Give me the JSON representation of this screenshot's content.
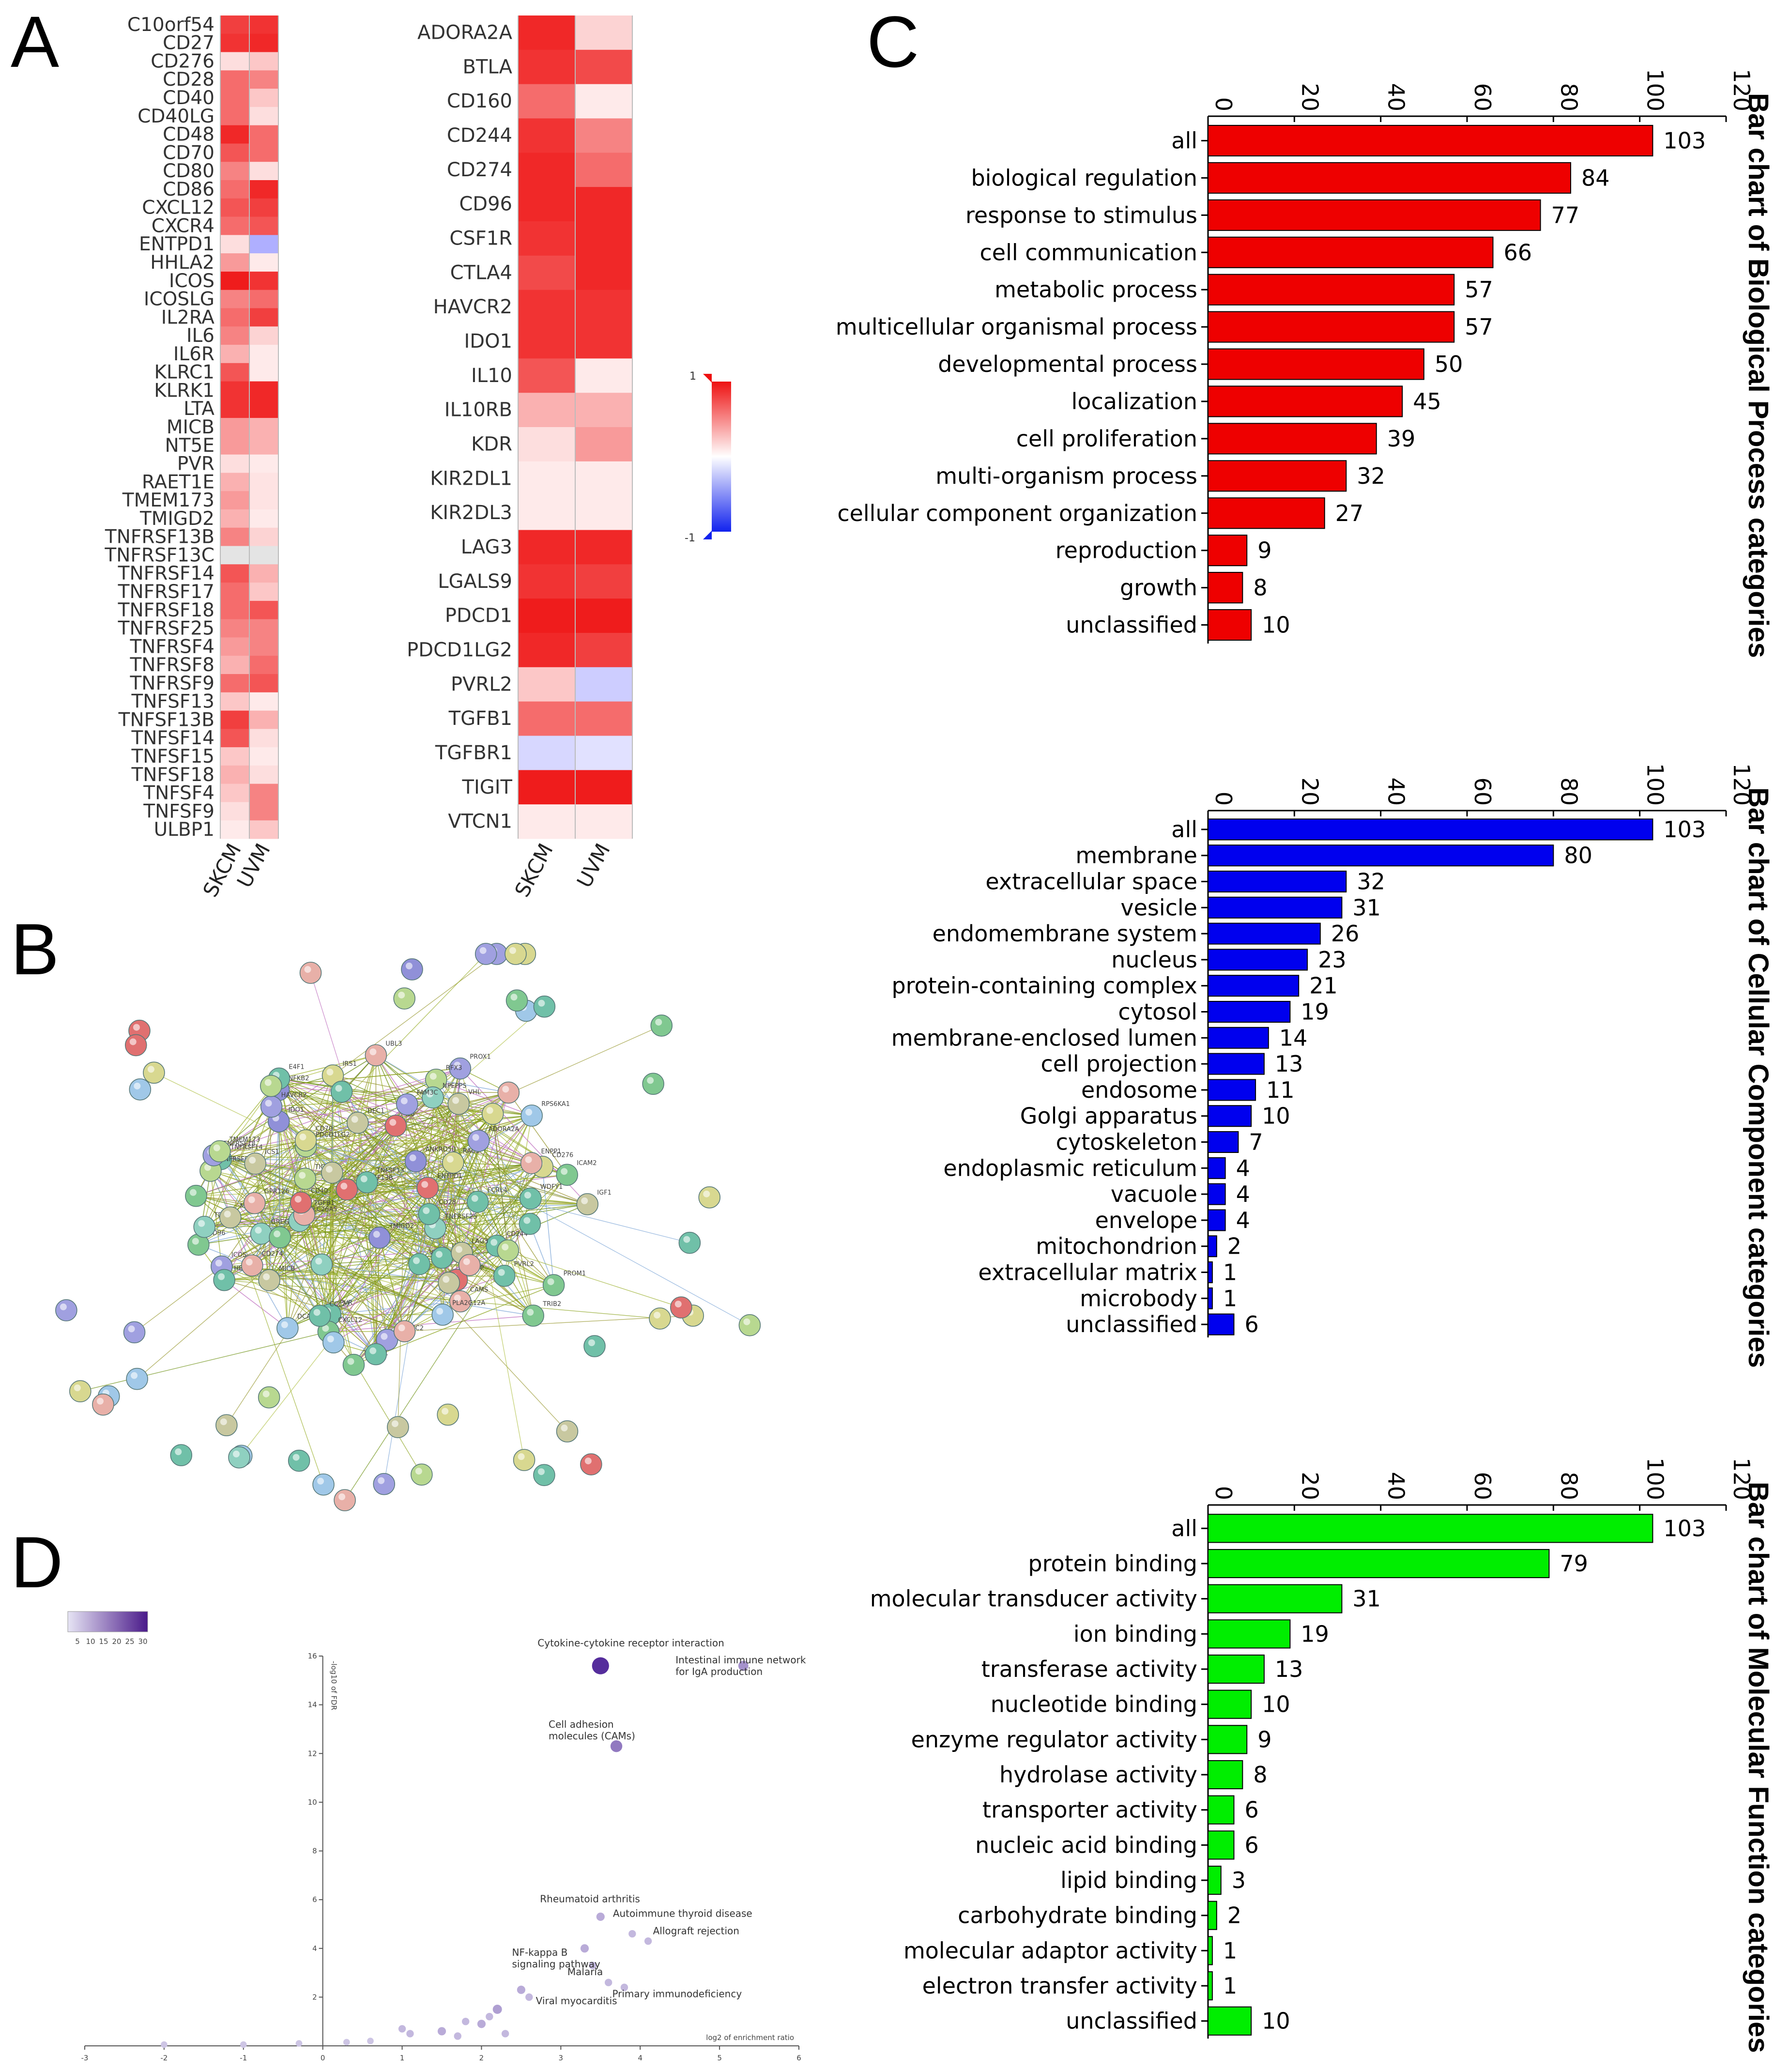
{
  "panels": {
    "a": "A",
    "b": "B",
    "c": "C",
    "d": "D"
  },
  "colors": {
    "red": "#ee0000",
    "blue": "#0000ee",
    "green": "#00ee00",
    "heat_high": "#ee1111",
    "heat_low": "#2233dd"
  },
  "heatmap_a": {
    "genes": [
      "C10orf54",
      "CD27",
      "CD276",
      "CD28",
      "CD40",
      "CD40LG",
      "CD48",
      "CD70",
      "CD80",
      "CD86",
      "CXCL12",
      "CXCR4",
      "ENTPD1",
      "HHLA2",
      "ICOS",
      "ICOSLG",
      "IL2RA",
      "IL6",
      "IL6R",
      "KLRC1",
      "KLRK1",
      "LTA",
      "MICB",
      "NT5E",
      "PVR",
      "RAET1E",
      "TMEM173",
      "TMIGD2",
      "TNFRSF13B",
      "TNFRSF13C",
      "TNFRSF14",
      "TNFRSF17",
      "TNFRSF18",
      "TNFRSF25",
      "TNFRSF4",
      "TNFRSF8",
      "TNFRSF9",
      "TNFSF13",
      "TNFSF13B",
      "TNFSF14",
      "TNFSF15",
      "TNFSF18",
      "TNFSF4",
      "TNFSF9",
      "ULBP1"
    ],
    "columns": [
      "SKCM",
      "UVM"
    ],
    "values": [
      [
        0.8,
        0.85
      ],
      [
        0.85,
        0.9
      ],
      [
        0.1,
        0.2
      ],
      [
        0.6,
        0.5
      ],
      [
        0.6,
        0.2
      ],
      [
        0.6,
        0.1
      ],
      [
        0.9,
        0.6
      ],
      [
        0.7,
        0.6
      ],
      [
        0.5,
        0.1
      ],
      [
        0.6,
        0.9
      ],
      [
        0.7,
        0.8
      ],
      [
        0.6,
        0.7
      ],
      [
        0.1,
        -0.35
      ],
      [
        0.4,
        0.05
      ],
      [
        0.95,
        0.85
      ],
      [
        0.5,
        0.6
      ],
      [
        0.6,
        0.8
      ],
      [
        0.5,
        0.15
      ],
      [
        0.3,
        0.05
      ],
      [
        0.7,
        0.05
      ],
      [
        0.85,
        0.9
      ],
      [
        0.85,
        0.9
      ],
      [
        0.4,
        0.3
      ],
      [
        0.4,
        0.3
      ],
      [
        0.1,
        0.05
      ],
      [
        0.3,
        0.08
      ],
      [
        0.4,
        0.08
      ],
      [
        0.3,
        0.05
      ],
      [
        0.5,
        0.15
      ],
      [
        0.0,
        0.0
      ],
      [
        0.7,
        0.3
      ],
      [
        0.6,
        0.2
      ],
      [
        0.6,
        0.7
      ],
      [
        0.5,
        0.5
      ],
      [
        0.4,
        0.5
      ],
      [
        0.3,
        0.6
      ],
      [
        0.6,
        0.7
      ],
      [
        0.2,
        0.05
      ],
      [
        0.8,
        0.3
      ],
      [
        0.7,
        0.1
      ],
      [
        0.2,
        0.05
      ],
      [
        0.3,
        0.1
      ],
      [
        0.2,
        0.5
      ],
      [
        0.1,
        0.5
      ],
      [
        0.05,
        0.2
      ]
    ]
  },
  "heatmap_b": {
    "genes": [
      "ADORA2A",
      "BTLA",
      "CD160",
      "CD244",
      "CD274",
      "CD96",
      "CSF1R",
      "CTLA4",
      "HAVCR2",
      "IDO1",
      "IL10",
      "IL10RB",
      "KDR",
      "KIR2DL1",
      "KIR2DL3",
      "LAG3",
      "LGALS9",
      "PDCD1",
      "PDCD1LG2",
      "PVRL2",
      "TGFB1",
      "TGFBR1",
      "TIGIT",
      "VTCN1"
    ],
    "display_genes": [
      "ADORA2A",
      "BTLA",
      "CD160",
      "CD244",
      "CD274",
      "CD96",
      "CSF1R",
      "CTLA4",
      "HAVCR2",
      "IDO1",
      "IL10",
      "IL10RB",
      "KDR",
      "KIR2DL1",
      "KIR2DL3",
      "LAG3",
      "LGALS9",
      "PDCD1",
      "PDCD1LG2",
      "PVRL2",
      "TGFB1",
      "TGFBR1",
      "TIGIT",
      "VTCN1"
    ],
    "columns": [
      "SKCM",
      "UVM"
    ],
    "values": [
      [
        0.9,
        0.15
      ],
      [
        0.85,
        0.75
      ],
      [
        0.6,
        0.05
      ],
      [
        0.85,
        0.5
      ],
      [
        0.9,
        0.6
      ],
      [
        0.9,
        0.9
      ],
      [
        0.85,
        0.9
      ],
      [
        0.75,
        0.9
      ],
      [
        0.85,
        0.85
      ],
      [
        0.85,
        0.85
      ],
      [
        0.7,
        0.05
      ],
      [
        0.3,
        0.3
      ],
      [
        0.1,
        0.4
      ],
      [
        0.05,
        0.05
      ],
      [
        0.05,
        0.05
      ],
      [
        0.9,
        0.9
      ],
      [
        0.85,
        0.8
      ],
      [
        0.95,
        0.95
      ],
      [
        0.9,
        0.8
      ],
      [
        0.2,
        -0.2
      ],
      [
        0.6,
        0.6
      ],
      [
        -0.15,
        -0.1
      ],
      [
        0.95,
        0.95
      ],
      [
        0.05,
        0.05
      ]
    ]
  },
  "colorbar": {
    "max_label": "1",
    "min_label": "-1"
  },
  "chart_data": [
    {
      "type": "bar",
      "orientation": "horizontal",
      "title": "Bar chart of Biological Process categories",
      "categories": [
        "all",
        "biological regulation",
        "response to stimulus",
        "cell communication",
        "metabolic process",
        "multicellular organismal process",
        "developmental process",
        "localization",
        "cell proliferation",
        "multi-organism process",
        "cellular component organization",
        "reproduction",
        "growth",
        "unclassified"
      ],
      "values": [
        103,
        84,
        77,
        66,
        57,
        57,
        50,
        45,
        39,
        32,
        27,
        9,
        8,
        10
      ],
      "ticks": [
        "0",
        "20",
        "40",
        "60",
        "80",
        "100",
        "120"
      ],
      "xlim": [
        0,
        120
      ],
      "color": "#ee0000"
    },
    {
      "type": "bar",
      "orientation": "horizontal",
      "title": "Bar chart of Cellular Component categories",
      "categories": [
        "all",
        "membrane",
        "extracellular space",
        "vesicle",
        "endomembrane system",
        "nucleus",
        "protein-containing complex",
        "cytosol",
        "membrane-enclosed lumen",
        "cell projection",
        "endosome",
        "Golgi apparatus",
        "cytoskeleton",
        "endoplasmic reticulum",
        "vacuole",
        "envelope",
        "mitochondrion",
        "extracellular matrix",
        "microbody",
        "unclassified"
      ],
      "values": [
        103,
        80,
        32,
        31,
        26,
        23,
        21,
        19,
        14,
        13,
        11,
        10,
        7,
        4,
        4,
        4,
        2,
        1,
        1,
        6
      ],
      "ticks": [
        "0",
        "20",
        "40",
        "60",
        "80",
        "100",
        "120"
      ],
      "xlim": [
        0,
        120
      ],
      "color": "#0000ee"
    },
    {
      "type": "bar",
      "orientation": "horizontal",
      "title": "Bar chart of Molecular Function categories",
      "categories": [
        "all",
        "protein binding",
        "molecular transducer activity",
        "ion binding",
        "transferase activity",
        "nucleotide binding",
        "enzyme regulator activity",
        "hydrolase activity",
        "transporter activity",
        "nucleic acid binding",
        "lipid binding",
        "carbohydrate binding",
        "molecular adaptor activity",
        "electron transfer activity",
        "unclassified"
      ],
      "values": [
        103,
        79,
        31,
        19,
        13,
        10,
        9,
        8,
        6,
        6,
        3,
        2,
        1,
        1,
        10
      ],
      "ticks": [
        "0",
        "20",
        "40",
        "60",
        "80",
        "100",
        "120"
      ],
      "xlim": [
        0,
        120
      ],
      "color": "#00ee00"
    },
    {
      "type": "scatter",
      "title": "",
      "xlabel": "log2 of enrichment ratio",
      "ylabel": "-log10 of FDR",
      "xticks": [
        "-3",
        "-2",
        "-1",
        "0",
        "1",
        "2",
        "3",
        "4",
        "5",
        "6"
      ],
      "yticks": [
        "2",
        "4",
        "6",
        "8",
        "10",
        "12",
        "14",
        "16"
      ],
      "xlim": [
        -3,
        6
      ],
      "ylim": [
        0,
        16
      ],
      "legend_ticks": [
        "5",
        "10",
        "15",
        "20",
        "25",
        "30"
      ],
      "points": [
        {
          "x": 3.5,
          "y": 15.6,
          "label": "Cytokine-cytokine receptor interaction",
          "size": 28
        },
        {
          "x": 5.3,
          "y": 15.6,
          "label": "Intestinal immune network for IgA production",
          "size": 12
        },
        {
          "x": 3.7,
          "y": 12.3,
          "label": "Cell adhesion molecules (CAMs)",
          "size": 16
        },
        {
          "x": 3.5,
          "y": 5.3,
          "label": "Rheumatoid arthritis",
          "size": 8
        },
        {
          "x": 3.9,
          "y": 4.6,
          "label": "Autoimmune thyroid disease",
          "size": 6
        },
        {
          "x": 4.1,
          "y": 4.3,
          "label": "Allograft rejection",
          "size": 6
        },
        {
          "x": 3.3,
          "y": 4.0,
          "label": "NF-kappa B signaling pathway",
          "size": 8
        },
        {
          "x": 3.4,
          "y": 3.3,
          "label": "Malaria",
          "size": 6
        },
        {
          "x": 3.6,
          "y": 2.6,
          "label": "Viral myocarditis",
          "size": 6
        },
        {
          "x": 3.8,
          "y": 2.4,
          "label": "Primary immunodeficiency",
          "size": 6
        },
        {
          "x": 2.5,
          "y": 2.3,
          "label": "",
          "size": 8
        },
        {
          "x": 2.6,
          "y": 2.0,
          "label": "",
          "size": 6
        },
        {
          "x": 2.2,
          "y": 1.5,
          "label": "",
          "size": 10
        },
        {
          "x": 2.1,
          "y": 1.2,
          "label": "",
          "size": 6
        },
        {
          "x": 1.8,
          "y": 1.0,
          "label": "",
          "size": 6
        },
        {
          "x": 2.0,
          "y": 0.9,
          "label": "",
          "size": 8
        },
        {
          "x": 1.5,
          "y": 0.6,
          "label": "",
          "size": 8
        },
        {
          "x": 1.1,
          "y": 0.5,
          "label": "",
          "size": 6
        },
        {
          "x": 1.0,
          "y": 0.7,
          "label": "",
          "size": 6
        },
        {
          "x": 1.7,
          "y": 0.4,
          "label": "",
          "size": 6
        },
        {
          "x": 2.3,
          "y": 0.5,
          "label": "",
          "size": 6
        },
        {
          "x": 0.6,
          "y": 0.2,
          "label": "",
          "size": 4
        },
        {
          "x": 0.3,
          "y": 0.15,
          "label": "",
          "size": 4
        },
        {
          "x": -0.3,
          "y": 0.1,
          "label": "",
          "size": 4
        },
        {
          "x": -1.0,
          "y": 0.05,
          "label": "",
          "size": 4
        },
        {
          "x": -2.0,
          "y": 0.05,
          "label": "",
          "size": 4
        }
      ]
    }
  ],
  "network": {
    "labels": [
      "RPS6KA1",
      "ICAM2",
      "TNFRSF14",
      "TNFRSF13B",
      "IRS1",
      "DEC1",
      "UBL3",
      "IGF1",
      "VTCN1",
      "NFKB2",
      "CAMS",
      "PVR",
      "TNFSF13",
      "TNFRSF9",
      "ICOS",
      "TRIB2",
      "SLC26A5",
      "RAC3",
      "DCAS4",
      "TMIGD2",
      "FCRL4",
      "E4F1",
      "CXCL12",
      "TNFRSF25",
      "HEY1",
      "ADORA2A",
      "TGFB1",
      "CD276",
      "CCL27",
      "TNFRSF18",
      "TMEM173",
      "WDFY1",
      "PDCD1LG2",
      "IDO1",
      "PLA2G12A",
      "CD28",
      "GREG",
      "TGFBR1",
      "CD244",
      "MICB",
      "TIGIT",
      "PVRL2",
      "IL6",
      "CD274",
      "CD96",
      "ENTPD1",
      "CCNP",
      "TDE1",
      "UCP2",
      "PROM1",
      "MRAS",
      "PROX1",
      "ICS1",
      "VHL",
      "PGRMC2",
      "ENPP1",
      "ANKRD50",
      "RFX3",
      "GPR126",
      "NPEPPS",
      "FAM3C",
      "CD70",
      "LAG3",
      "CD40",
      "HAVCR2"
    ]
  }
}
